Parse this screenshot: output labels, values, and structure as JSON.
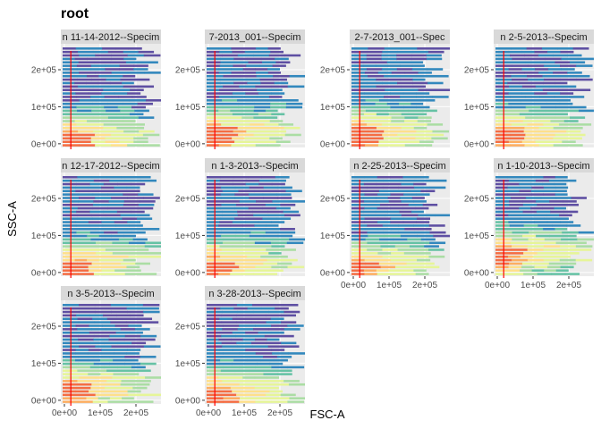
{
  "chart_data": {
    "type": "heatmap",
    "title": "root",
    "xlabel": "FSC-A",
    "ylabel": "SSC-A",
    "x_ticks": [
      "0e+00",
      "1e+05",
      "2e+05"
    ],
    "y_ticks": [
      "0e+00",
      "1e+05",
      "2e+05"
    ],
    "xlim": [
      -10000,
      270000
    ],
    "ylim": [
      -10000,
      270000
    ],
    "gate_x": 18000,
    "colors": {
      "strip": "#d9d9d9",
      "panel": "#ebebeb",
      "grid": "#ffffff",
      "gate": "#ff0000",
      "palette": [
        "#5e4fa2",
        "#3288bd",
        "#66c2a5",
        "#abdda4",
        "#e6f598",
        "#fee08b",
        "#fdae61",
        "#f46d43",
        "#d53e4f"
      ]
    },
    "panels": [
      {
        "strip_label": "n 11-14-2012--Specim",
        "density_peak_y": 15000,
        "hot": 1.0
      },
      {
        "strip_label": "7-2013_001--Specim",
        "density_peak_y": 30000,
        "hot": 0.8
      },
      {
        "strip_label": "2-7-2013_001--Spec",
        "density_peak_y": 30000,
        "hot": 0.8
      },
      {
        "strip_label": "n 2-5-2013--Specim",
        "density_peak_y": 25000,
        "hot": 0.6
      },
      {
        "strip_label": "n 12-17-2012--Specim",
        "density_peak_y": 20000,
        "hot": 0.7
      },
      {
        "strip_label": "n 1-3-2013--Specim",
        "density_peak_y": 20000,
        "hot": 0.75
      },
      {
        "strip_label": "n 2-25-2013--Specim",
        "density_peak_y": 15000,
        "hot": 0.55
      },
      {
        "strip_label": "n 1-10-2013--Specim",
        "density_peak_y": 50000,
        "hot": 0.5
      },
      {
        "strip_label": "n 3-5-2013--Specim",
        "density_peak_y": 30000,
        "hot": 0.45
      },
      {
        "strip_label": "n 3-28-2013--Specim",
        "density_peak_y": 20000,
        "hot": 0.6
      }
    ]
  }
}
